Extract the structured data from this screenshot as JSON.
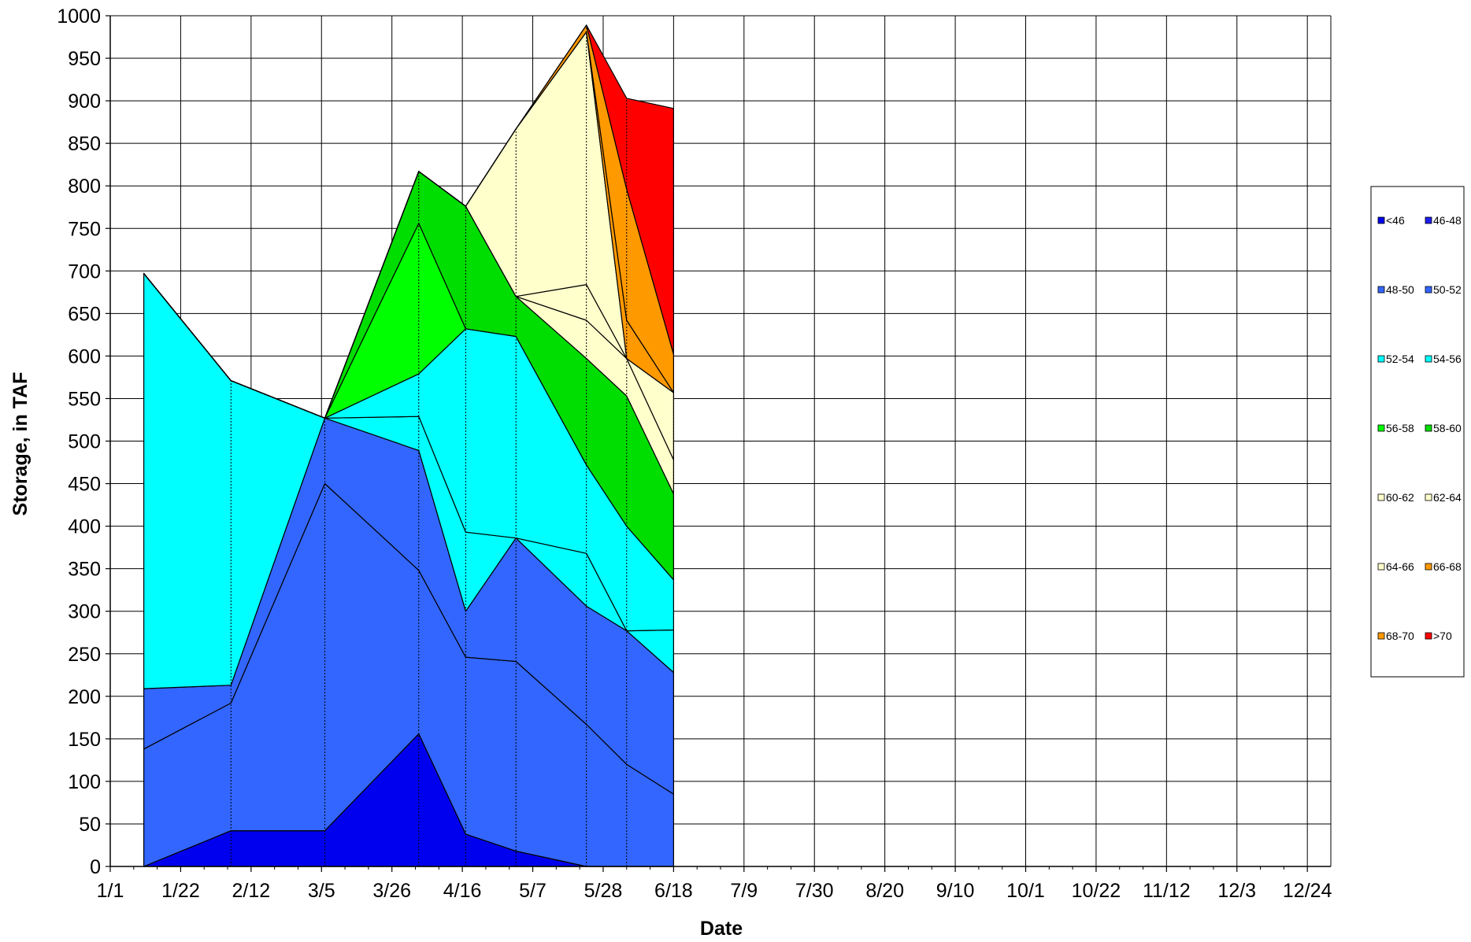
{
  "chart_data": {
    "type": "area",
    "title": "",
    "xlabel": "Date",
    "ylabel": "Storage, in TAF",
    "ylim": [
      0,
      1000
    ],
    "yticks": [
      0,
      50,
      100,
      150,
      200,
      250,
      300,
      350,
      400,
      450,
      500,
      550,
      600,
      650,
      700,
      750,
      800,
      850,
      900,
      950,
      1000
    ],
    "xlim_days": [
      0,
      364
    ],
    "xticks": [
      {
        "day": 0,
        "label": "1/1"
      },
      {
        "day": 21,
        "label": "1/22"
      },
      {
        "day": 42,
        "label": "2/12"
      },
      {
        "day": 63,
        "label": "3/5"
      },
      {
        "day": 84,
        "label": "3/26"
      },
      {
        "day": 105,
        "label": "4/16"
      },
      {
        "day": 126,
        "label": "5/7"
      },
      {
        "day": 147,
        "label": "5/28"
      },
      {
        "day": 168,
        "label": "6/18"
      },
      {
        "day": 189,
        "label": "7/9"
      },
      {
        "day": 210,
        "label": "7/30"
      },
      {
        "day": 231,
        "label": "8/20"
      },
      {
        "day": 252,
        "label": "9/10"
      },
      {
        "day": 273,
        "label": "10/1"
      },
      {
        "day": 294,
        "label": "10/22"
      },
      {
        "day": 315,
        "label": "11/12"
      },
      {
        "day": 336,
        "label": "12/3"
      },
      {
        "day": 357,
        "label": "12/24"
      }
    ],
    "x_days": [
      10,
      36,
      64,
      92,
      106,
      121,
      142,
      154,
      168
    ],
    "series": [
      {
        "name": "<46",
        "color": "#0000EE",
        "values": [
          0,
          42,
          42,
          156,
          38,
          18,
          0,
          0,
          0
        ]
      },
      {
        "name": "46-48",
        "color": "#1E1EF0",
        "values": [
          0,
          0,
          0,
          0,
          0,
          0,
          0,
          0,
          0
        ]
      },
      {
        "name": "48-50",
        "color": "#3366FF",
        "values": [
          138,
          150,
          408,
          192,
          208,
          223,
          167,
          120,
          85
        ]
      },
      {
        "name": "50-52",
        "color": "#3366FF",
        "values": [
          71,
          21,
          77,
          141,
          54,
          145,
          139,
          157,
          143
        ]
      },
      {
        "name": "52-54",
        "color": "#00FFFF",
        "values": [
          488,
          358,
          0,
          40,
          93,
          0,
          62,
          0,
          50
        ]
      },
      {
        "name": "54-56",
        "color": "#00FFFF",
        "values": [
          0,
          0,
          0,
          50,
          239,
          237,
          104,
          123,
          59
        ]
      },
      {
        "name": "56-58",
        "color": "#00FF00",
        "values": [
          0,
          0,
          0,
          177,
          0,
          0,
          0,
          0,
          0
        ]
      },
      {
        "name": "58-60",
        "color": "#00DD00",
        "values": [
          0,
          0,
          0,
          61,
          144,
          47,
          125,
          153,
          101
        ]
      },
      {
        "name": "60-62",
        "color": "#FFFFCC",
        "values": [
          0,
          0,
          0,
          0,
          0,
          0,
          45,
          44,
          40
        ]
      },
      {
        "name": "62-64",
        "color": "#FFFFCC",
        "values": [
          0,
          0,
          0,
          0,
          0,
          0,
          42,
          0,
          79
        ]
      },
      {
        "name": "64-66",
        "color": "#FFFFCC",
        "values": [
          0,
          0,
          0,
          0,
          0,
          197,
          297,
          0,
          0
        ]
      },
      {
        "name": "66-68",
        "color": "#FF9900",
        "values": [
          0,
          0,
          0,
          0,
          0,
          0,
          0,
          45,
          0
        ]
      },
      {
        "name": "68-70",
        "color": "#FF9900",
        "values": [
          0,
          0,
          0,
          0,
          0,
          0,
          8,
          154,
          45
        ]
      },
      {
        "name": ">70",
        "color": "#FF0000",
        "values": [
          0,
          0,
          0,
          0,
          0,
          0,
          0,
          107,
          289
        ]
      }
    ],
    "grid": true,
    "legend_position": "right"
  }
}
